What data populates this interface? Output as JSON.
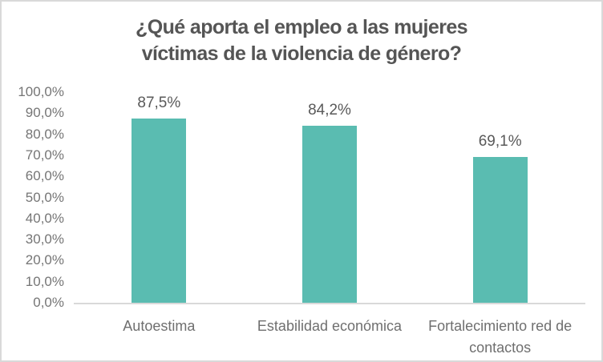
{
  "chart_data": {
    "type": "bar",
    "title": "¿Qué aporta el empleo a las mujeres víctimas de la violencia de género?",
    "title_lines": [
      "¿Qué aporta el empleo a las mujeres",
      "víctimas de la violencia de género?"
    ],
    "categories": [
      "Autoestima",
      "Estabilidad económica",
      "Fortalecimiento red de contactos"
    ],
    "values": [
      87.5,
      84.2,
      69.1
    ],
    "data_labels": [
      "87,5%",
      "84,2%",
      "69,1%"
    ],
    "y_ticks": [
      "100,0%",
      "90,0%",
      "80,0%",
      "70,0%",
      "60,0%",
      "50,0%",
      "40,0%",
      "30,0%",
      "20,0%",
      "10,0%",
      "0,0%"
    ],
    "ylim": [
      0,
      100
    ],
    "xlabel": "",
    "ylabel": "",
    "grid": false,
    "legend": false,
    "colors": {
      "bar": "#5ABCB1",
      "axis_line": "#D9D9D9",
      "frame_border": "#D9D9D9",
      "title_text": "#555555",
      "tick_text": "#757575",
      "category_text": "#6F6F6F",
      "data_label_text": "#595959"
    }
  }
}
